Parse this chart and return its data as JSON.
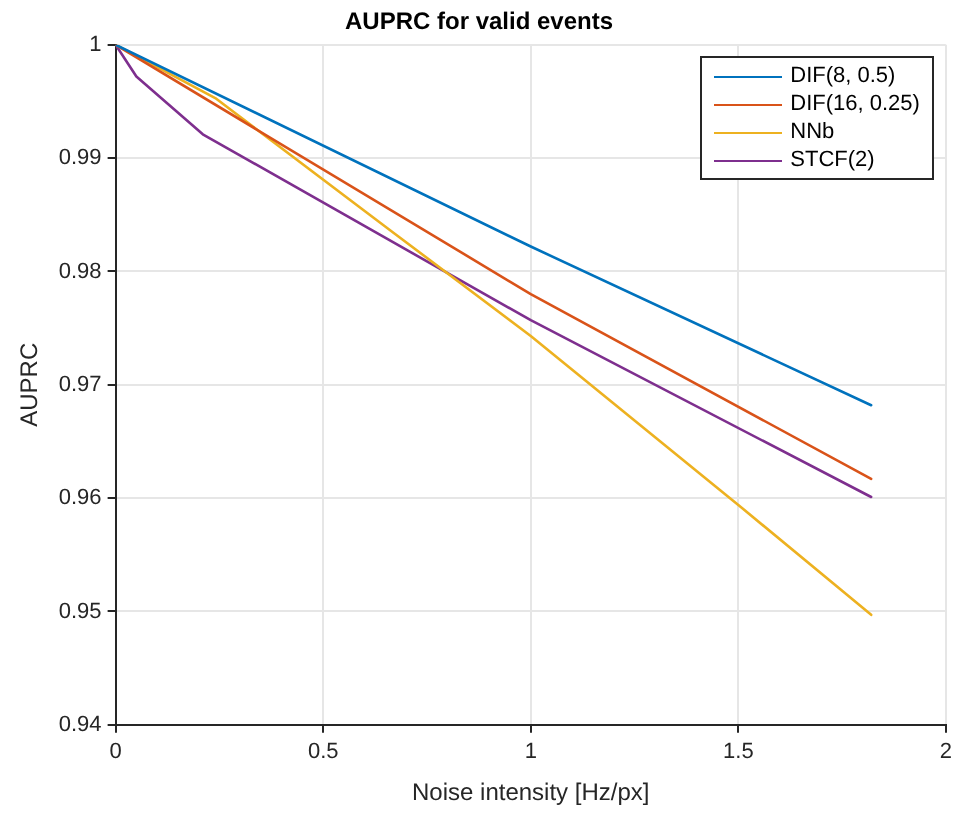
{
  "chart_data": {
    "type": "line",
    "title": "AUPRC for valid events",
    "xlabel": "Noise intensity [Hz/px]",
    "ylabel": "AUPRC",
    "series": [
      {
        "name": "DIF(8, 0.5)",
        "color": "#0072bd",
        "x": [
          0,
          1,
          1.82
        ],
        "values": [
          1,
          0.9822,
          0.9682
        ]
      },
      {
        "name": "DIF(16, 0.25)",
        "color": "#d95319",
        "x": [
          0,
          1,
          1.82
        ],
        "values": [
          1,
          0.978,
          0.9617
        ]
      },
      {
        "name": "NNb",
        "color": "#edb120",
        "x": [
          0,
          0.24,
          0.67,
          1,
          1.5,
          1.82
        ],
        "values": [
          1,
          0.9953,
          0.9834,
          0.9743,
          0.9594,
          0.9497
        ]
      },
      {
        "name": "STCF(2)",
        "color": "#7e2f8e",
        "x": [
          0,
          0.05,
          0.21,
          1,
          1.82
        ],
        "values": [
          1,
          0.9972,
          0.9921,
          0.9757,
          0.9601
        ]
      }
    ],
    "xlim": [
      0,
      2
    ],
    "xticks": [
      0,
      0.5,
      1,
      1.5,
      2
    ],
    "ylim": [
      0.94,
      1
    ],
    "yticks": [
      0.94,
      0.95,
      0.96,
      0.97,
      0.98,
      0.99,
      1
    ],
    "grid": true,
    "legend": "top right",
    "marker": "none",
    "line_style": "solid"
  }
}
